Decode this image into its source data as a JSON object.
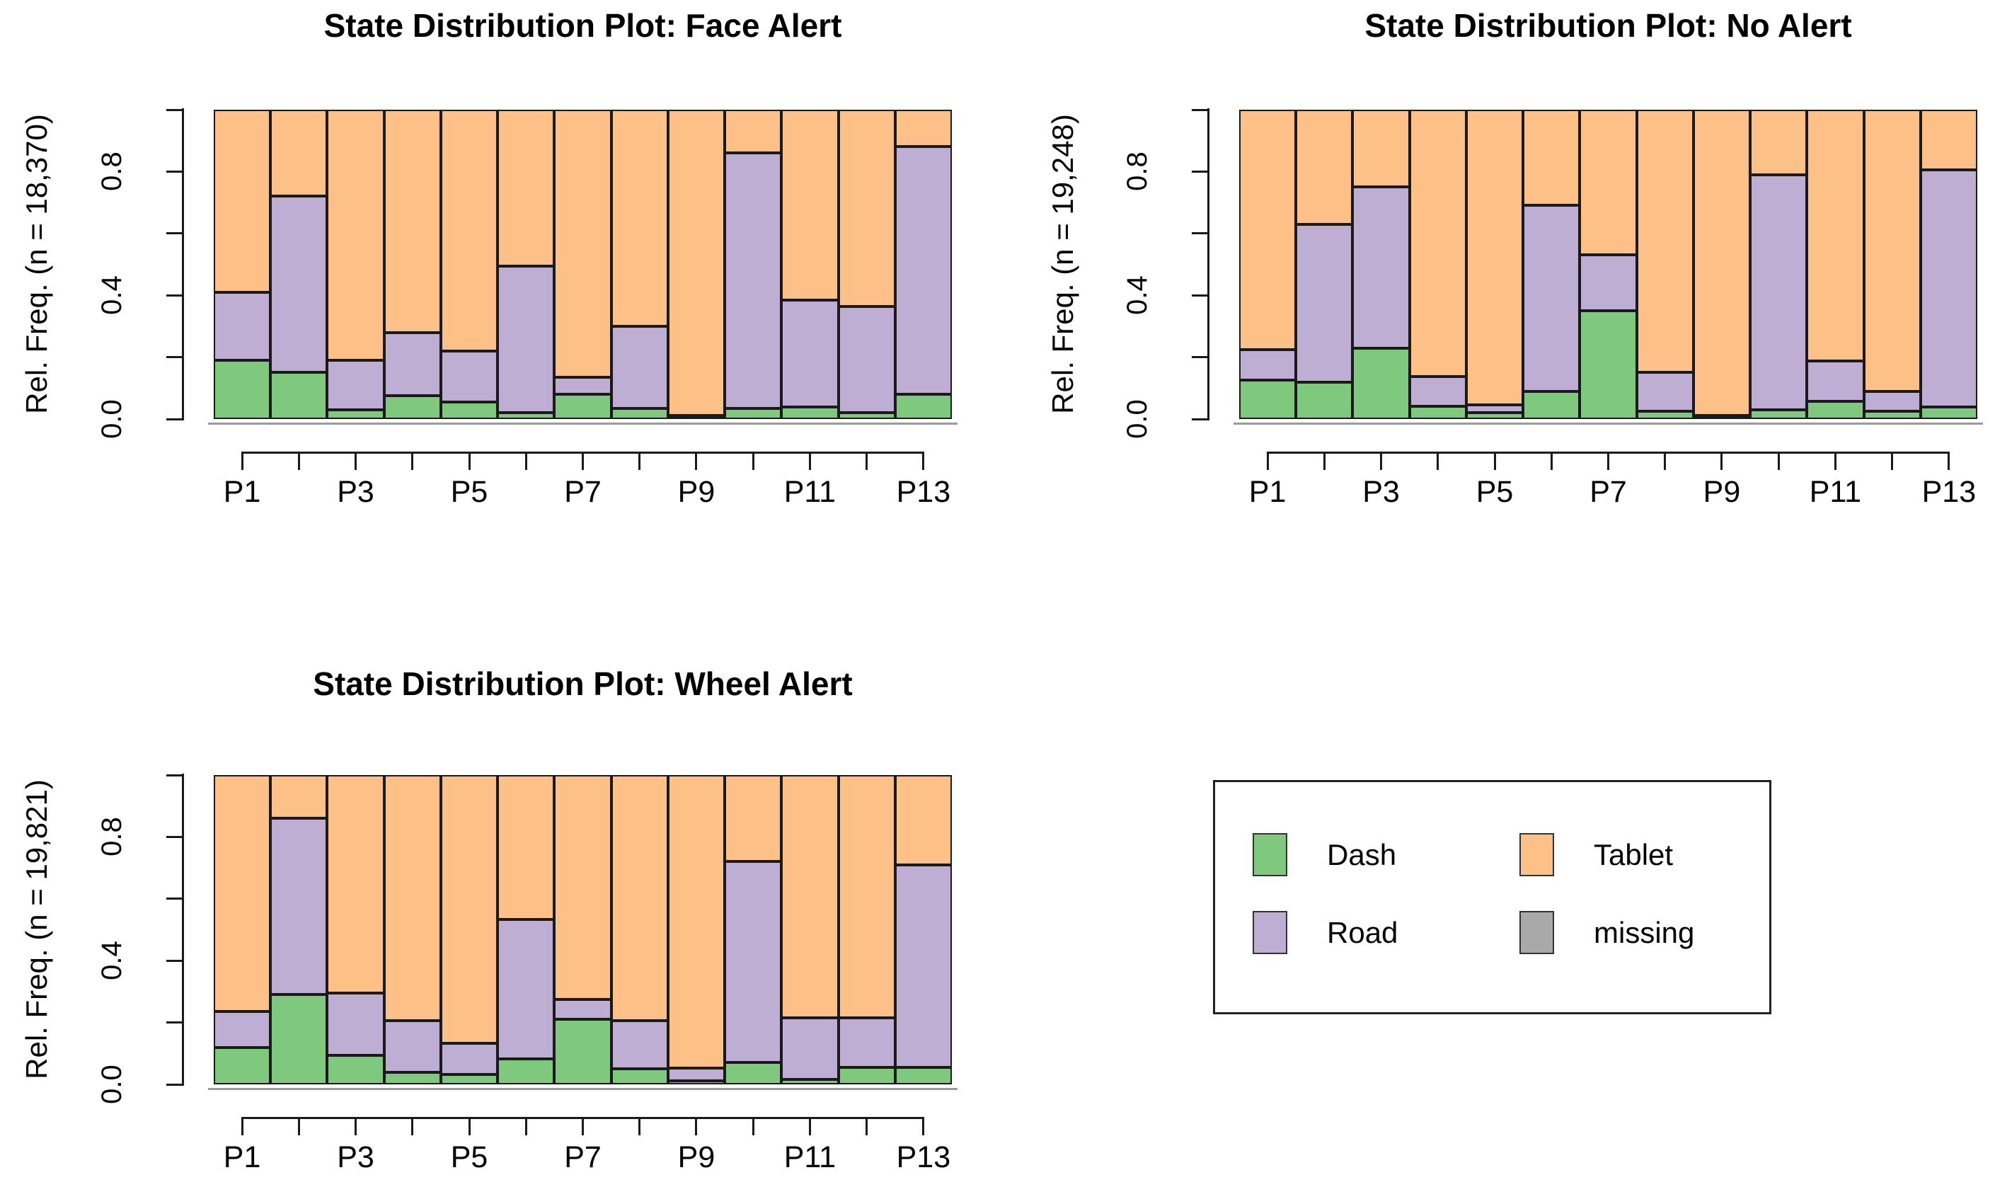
{
  "figure": {
    "background": "#ffffff",
    "text_color": "#000000"
  },
  "styles": {
    "bar_border_color": "#1a1a1a",
    "axis_color": "#1a1a1a",
    "baseline_color": "#9a9a9a"
  },
  "chart_data": [
    {
      "type": "bar",
      "stacked": true,
      "title": "State Distribution Plot: Face Alert",
      "ylabel": "Rel. Freq. (n = 18,370)",
      "xlabel": "",
      "categories": [
        "P1",
        "P2",
        "P3",
        "P4",
        "P5",
        "P6",
        "P7",
        "P8",
        "P9",
        "P10",
        "P11",
        "P12",
        "P13"
      ],
      "x_tick_labels_shown": [
        "P1",
        "P3",
        "P5",
        "P7",
        "P9",
        "P11",
        "P13"
      ],
      "ylim": [
        0,
        1
      ],
      "yticks": [
        0,
        0.2,
        0.4,
        0.6,
        0.8,
        1
      ],
      "ytick_labels_shown": [
        "0.0",
        "0.4",
        "0.8"
      ],
      "grid": false,
      "legend_position": "none",
      "series": [
        {
          "name": "Dash",
          "color": "#7FC97F",
          "values": [
            0.19,
            0.15,
            0.03,
            0.075,
            0.055,
            0.02,
            0.08,
            0.035,
            0.005,
            0.035,
            0.04,
            0.02,
            0.08
          ]
        },
        {
          "name": "Road",
          "color": "#BEAED4",
          "values": [
            0.22,
            0.57,
            0.16,
            0.205,
            0.165,
            0.475,
            0.055,
            0.265,
            0.007,
            0.825,
            0.345,
            0.345,
            0.8
          ]
        },
        {
          "name": "Tablet",
          "color": "#FDC086",
          "values": [
            0.59,
            0.28,
            0.81,
            0.72,
            0.78,
            0.505,
            0.865,
            0.7,
            0.988,
            0.14,
            0.615,
            0.635,
            0.12
          ]
        }
      ]
    },
    {
      "type": "bar",
      "stacked": true,
      "title": "State Distribution Plot: No Alert",
      "ylabel": "Rel. Freq. (n = 19,248)",
      "xlabel": "",
      "categories": [
        "P1",
        "P2",
        "P3",
        "P4",
        "P5",
        "P6",
        "P7",
        "P8",
        "P9",
        "P10",
        "P11",
        "P12",
        "P13"
      ],
      "x_tick_labels_shown": [
        "P1",
        "P3",
        "P5",
        "P7",
        "P9",
        "P11",
        "P13"
      ],
      "ylim": [
        0,
        1
      ],
      "yticks": [
        0,
        0.2,
        0.4,
        0.6,
        0.8,
        1
      ],
      "ytick_labels_shown": [
        "0.0",
        "0.4",
        "0.8"
      ],
      "grid": false,
      "legend_position": "none",
      "series": [
        {
          "name": "Dash",
          "color": "#7FC97F",
          "values": [
            0.125,
            0.12,
            0.23,
            0.042,
            0.02,
            0.09,
            0.35,
            0.025,
            0.005,
            0.03,
            0.058,
            0.025,
            0.04
          ]
        },
        {
          "name": "Road",
          "color": "#BEAED4",
          "values": [
            0.1,
            0.51,
            0.52,
            0.095,
            0.025,
            0.6,
            0.18,
            0.125,
            0.007,
            0.76,
            0.13,
            0.065,
            0.765
          ]
        },
        {
          "name": "Tablet",
          "color": "#FDC086",
          "values": [
            0.775,
            0.37,
            0.25,
            0.863,
            0.955,
            0.31,
            0.47,
            0.85,
            0.988,
            0.21,
            0.812,
            0.91,
            0.195
          ]
        }
      ]
    },
    {
      "type": "bar",
      "stacked": true,
      "title": "State Distribution Plot: Wheel Alert",
      "ylabel": "Rel. Freq. (n = 19,821)",
      "xlabel": "",
      "categories": [
        "P1",
        "P2",
        "P3",
        "P4",
        "P5",
        "P6",
        "P7",
        "P8",
        "P9",
        "P10",
        "P11",
        "P12",
        "P13"
      ],
      "x_tick_labels_shown": [
        "P1",
        "P3",
        "P5",
        "P7",
        "P9",
        "P11",
        "P13"
      ],
      "ylim": [
        0,
        1
      ],
      "yticks": [
        0,
        0.2,
        0.4,
        0.6,
        0.8,
        1
      ],
      "ytick_labels_shown": [
        "0.0",
        "0.4",
        "0.8"
      ],
      "grid": false,
      "legend_position": "none",
      "series": [
        {
          "name": "Dash",
          "color": "#7FC97F",
          "values": [
            0.12,
            0.29,
            0.095,
            0.04,
            0.033,
            0.083,
            0.21,
            0.05,
            0.012,
            0.07,
            0.015,
            0.055,
            0.055
          ]
        },
        {
          "name": "Road",
          "color": "#BEAED4",
          "values": [
            0.115,
            0.57,
            0.2,
            0.165,
            0.1,
            0.45,
            0.065,
            0.155,
            0.04,
            0.65,
            0.2,
            0.16,
            0.655
          ]
        },
        {
          "name": "Tablet",
          "color": "#FDC086",
          "values": [
            0.765,
            0.14,
            0.705,
            0.795,
            0.867,
            0.467,
            0.725,
            0.795,
            0.948,
            0.28,
            0.785,
            0.785,
            0.29
          ]
        }
      ]
    }
  ],
  "legend": {
    "items": [
      {
        "label": "Dash",
        "color": "#7FC97F"
      },
      {
        "label": "Road",
        "color": "#BEAED4"
      },
      {
        "label": "Tablet",
        "color": "#FDC086"
      },
      {
        "label": "missing",
        "color": "#A9A9A9"
      }
    ]
  }
}
